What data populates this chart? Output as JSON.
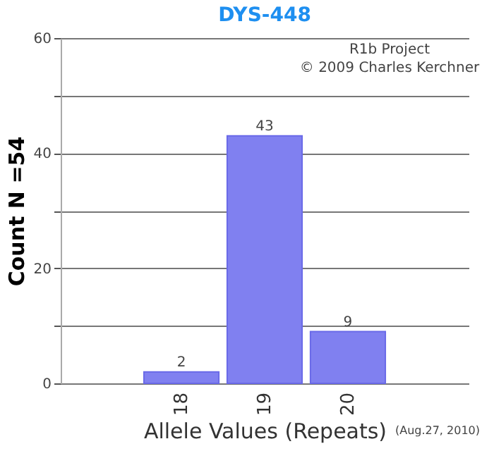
{
  "chart_data": {
    "type": "bar",
    "title": "DYS-448",
    "xlabel": "Allele Values (Repeats)",
    "ylabel": "Count N =54",
    "categories": [
      "18",
      "19",
      "20"
    ],
    "values": [
      2,
      43,
      9
    ],
    "color": "#8080f0",
    "data_labels": true,
    "ylim": [
      0,
      60
    ],
    "yticks": [
      0,
      {
        "value": 10,
        "label": null
      },
      20,
      {
        "value": 30,
        "label": null
      },
      40,
      {
        "value": 50,
        "label": null
      },
      60
    ],
    "grid": true,
    "annotations": [
      "R1b Project",
      "© 2009 Charles Kerchner",
      "(Aug.27, 2010)"
    ]
  }
}
